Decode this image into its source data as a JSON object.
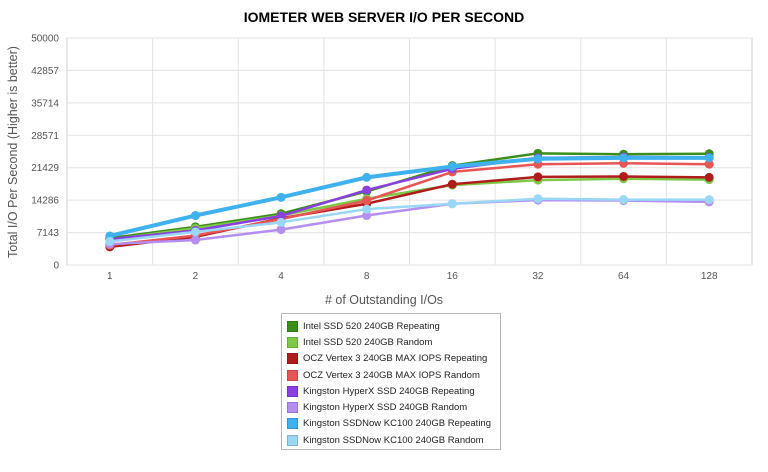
{
  "chart_data": {
    "type": "line",
    "title": "IOMETER WEB SERVER I/O PER SECOND",
    "xlabel": "# of Outstanding I/Os",
    "ylabel": "Total I/O Per Second (Higher is better)",
    "categories": [
      "1",
      "2",
      "4",
      "8",
      "16",
      "32",
      "64",
      "128"
    ],
    "yticks": [
      "0",
      "7143",
      "14286",
      "21429",
      "28571",
      "35714",
      "42857",
      "50000"
    ],
    "ylim": [
      0,
      50000
    ],
    "grid": true,
    "legend_position": "bottom",
    "series": [
      {
        "name": "Intel SSD 520 240GB Repeating",
        "color": "#3a8f1a",
        "values": [
          5900,
          8400,
          11300,
          16200,
          21900,
          24600,
          24400,
          24500
        ]
      },
      {
        "name": "Intel SSD 520 240GB Random",
        "color": "#7dc947",
        "values": [
          5600,
          8100,
          10900,
          14600,
          17600,
          18700,
          19000,
          18800
        ]
      },
      {
        "name": "OCZ Vertex 3 240GB MAX IOPS Repeating",
        "color": "#b01c1c",
        "values": [
          4000,
          6200,
          10300,
          13500,
          17800,
          19400,
          19500,
          19300
        ]
      },
      {
        "name": "OCZ Vertex 3 240GB MAX IOPS Random",
        "color": "#e85555",
        "values": [
          4400,
          6500,
          10100,
          14200,
          20500,
          22200,
          22400,
          22200
        ]
      },
      {
        "name": "Kingston HyperX SSD 240GB Repeating",
        "color": "#8a3fe0",
        "values": [
          5700,
          7600,
          10800,
          16500,
          21200,
          23600,
          23800,
          23700
        ]
      },
      {
        "name": "Kingston HyperX SSD 240GB Random",
        "color": "#b48ef0",
        "values": [
          4600,
          5500,
          7800,
          10900,
          13500,
          14300,
          14200,
          13900
        ]
      },
      {
        "name": "Kingston SSDNow KC100 240GB Repeating",
        "color": "#3fb1ee",
        "values": [
          6400,
          10900,
          14900,
          19300,
          21700,
          23400,
          23600,
          23600
        ]
      },
      {
        "name": "Kingston SSDNow KC100 240GB Random",
        "color": "#9ad7f5",
        "values": [
          5200,
          7300,
          9400,
          12300,
          13500,
          14600,
          14400,
          14400
        ]
      }
    ]
  }
}
